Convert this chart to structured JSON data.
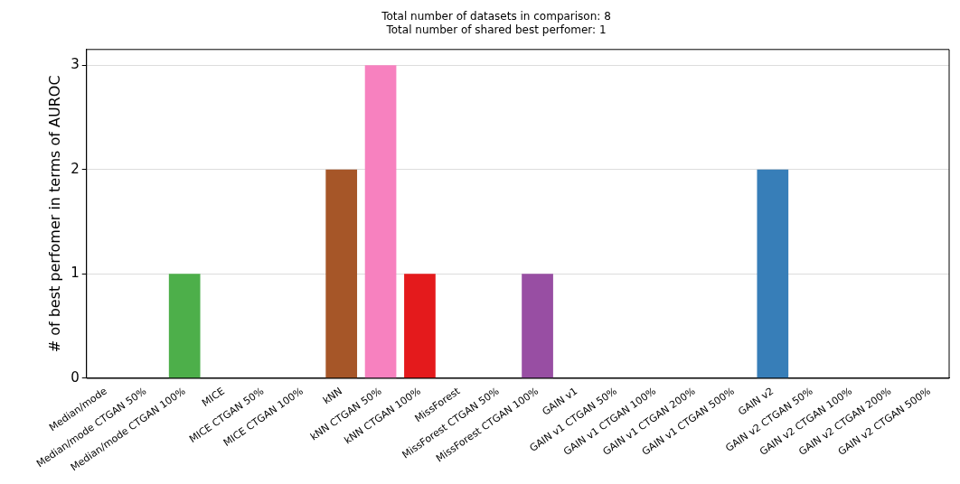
{
  "chart_data": {
    "type": "bar",
    "title": "Total number of datasets in comparison: 8",
    "subtitle": "Total number of shared best perfomer: 1",
    "ylabel": "# of best perfomer in terms of AUROC",
    "categories": [
      "Median/mode",
      "Median/mode CTGAN 50%",
      "Median/mode CTGAN 100%",
      "MICE",
      "MICE CTGAN 50%",
      "MICE CTGAN 100%",
      "kNN",
      "kNN CTGAN 50%",
      "kNN CTGAN 100%",
      "MissForest",
      "MissForest CTGAN 50%",
      "MissForest CTGAN 100%",
      "GAIN v1",
      "GAIN v1 CTGAN 50%",
      "GAIN v1 CTGAN 100%",
      "GAIN v1 CTGAN 200%",
      "GAIN v1 CTGAN 500%",
      "GAIN v2",
      "GAIN v2 CTGAN 50%",
      "GAIN v2 CTGAN 100%",
      "GAIN v2 CTGAN 200%",
      "GAIN v2 CTGAN 500%"
    ],
    "values": [
      0,
      0,
      1,
      0,
      0,
      0,
      2,
      3,
      1,
      0,
      0,
      1,
      0,
      0,
      0,
      0,
      0,
      2,
      0,
      0,
      0,
      0
    ],
    "colors": [
      "#999999",
      "#999999",
      "#4daf4a",
      "#999999",
      "#999999",
      "#999999",
      "#a65628",
      "#f781bf",
      "#e41a1c",
      "#999999",
      "#999999",
      "#984ea3",
      "#999999",
      "#999999",
      "#999999",
      "#999999",
      "#999999",
      "#377eb8",
      "#999999",
      "#999999",
      "#999999",
      "#999999"
    ],
    "ylim": [
      0,
      3.15
    ],
    "yticks": [
      0,
      1,
      2,
      3
    ],
    "grid": "y",
    "legend": false
  }
}
